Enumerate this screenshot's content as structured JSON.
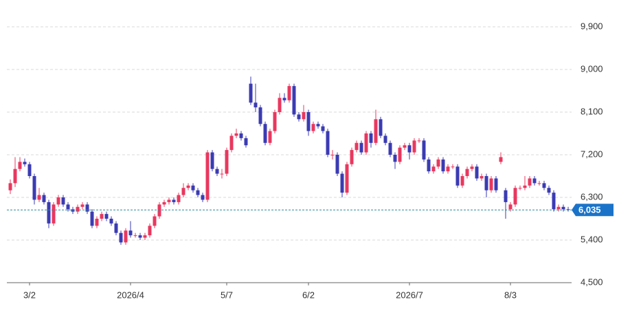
{
  "chart_data": {
    "type": "candlestick",
    "categories": [
      null,
      null,
      null,
      null,
      "3/2",
      null,
      null,
      null,
      null,
      null,
      null,
      null,
      null,
      null,
      null,
      null,
      null,
      null,
      null,
      null,
      null,
      null,
      null,
      null,
      null,
      "2026/4",
      null,
      null,
      null,
      null,
      null,
      null,
      null,
      null,
      null,
      null,
      null,
      null,
      null,
      null,
      null,
      null,
      null,
      null,
      null,
      "5/7",
      null,
      null,
      null,
      null,
      null,
      null,
      null,
      null,
      null,
      null,
      null,
      null,
      null,
      null,
      null,
      null,
      "6/2",
      null,
      null,
      null,
      null,
      null,
      null,
      null,
      null,
      null,
      null,
      null,
      null,
      null,
      null,
      null,
      null,
      null,
      null,
      null,
      null,
      "2026/7",
      null,
      null,
      null,
      null,
      null,
      null,
      null,
      null,
      null,
      null,
      null,
      null,
      null,
      null,
      null,
      null,
      null,
      null,
      null,
      null,
      "8/3",
      null,
      null,
      null,
      null,
      null,
      null,
      null,
      null,
      null,
      null,
      null,
      null
    ],
    "open": [
      6450,
      6600,
      6900,
      7050,
      7000,
      6750,
      6250,
      6350,
      6200,
      5750,
      6150,
      6300,
      6150,
      6050,
      6000,
      6100,
      6150,
      6000,
      5700,
      5850,
      5950,
      5850,
      5750,
      5550,
      5350,
      5600,
      5500,
      5500,
      5450,
      5500,
      5700,
      5900,
      6150,
      6200,
      6250,
      6200,
      6350,
      6500,
      6550,
      6450,
      6350,
      6250,
      7250,
      6900,
      6800,
      6800,
      7300,
      7600,
      7650,
      7550,
      8700,
      8300,
      8200,
      7850,
      7450,
      7700,
      8100,
      8400,
      8350,
      8650,
      8050,
      7950,
      8100,
      7700,
      7850,
      7800,
      7700,
      7200,
      7200,
      6800,
      6400,
      7000,
      7300,
      7450,
      7250,
      7650,
      7450,
      7950,
      7600,
      7450,
      7200,
      7050,
      7350,
      7400,
      7250,
      7500,
      7500,
      7100,
      6850,
      6950,
      7100,
      6850,
      6950,
      6950,
      6550,
      6750,
      6900,
      6950,
      6700,
      6750,
      6450,
      6700,
      7050,
      6450,
      6050,
      6150,
      6500,
      6500,
      6550,
      6700,
      6600,
      6600,
      6500,
      6400,
      6050,
      6100,
      6050
    ],
    "high": [
      6680,
      7150,
      7150,
      7120,
      7050,
      6800,
      6500,
      6400,
      6250,
      6200,
      6350,
      6350,
      6200,
      6100,
      6150,
      6200,
      6200,
      6050,
      5900,
      6000,
      6000,
      5900,
      5800,
      5600,
      5650,
      5800,
      5550,
      5550,
      5550,
      5750,
      5950,
      6200,
      6250,
      6300,
      6300,
      6400,
      6600,
      6600,
      6600,
      6500,
      6400,
      7300,
      7300,
      6950,
      6900,
      7350,
      7650,
      7750,
      7700,
      7600,
      8850,
      8700,
      8250,
      7900,
      7750,
      8150,
      8500,
      8500,
      8700,
      8700,
      8100,
      8250,
      8150,
      7900,
      7900,
      7850,
      7750,
      7300,
      7250,
      6850,
      7050,
      7350,
      7500,
      7500,
      7700,
      7700,
      8150,
      8000,
      7650,
      7500,
      7250,
      7400,
      7450,
      7450,
      7550,
      7550,
      7550,
      7150,
      7000,
      7150,
      7150,
      7000,
      7000,
      7000,
      6800,
      6950,
      7000,
      7000,
      6800,
      6800,
      6750,
      6750,
      7250,
      6500,
      6200,
      6550,
      6550,
      6750,
      6750,
      6750,
      6650,
      6650,
      6550,
      6450,
      6150,
      6150,
      6100
    ],
    "low": [
      6370,
      6520,
      6850,
      6950,
      6700,
      6150,
      6200,
      6150,
      5650,
      5700,
      6100,
      6100,
      6000,
      5950,
      5950,
      6050,
      5950,
      5650,
      5650,
      5800,
      5800,
      5700,
      5500,
      5300,
      5300,
      5450,
      5450,
      5400,
      5400,
      5450,
      5650,
      5850,
      6100,
      6150,
      6150,
      6150,
      6300,
      6450,
      6400,
      6300,
      6200,
      6200,
      6850,
      6750,
      6700,
      6750,
      7250,
      7550,
      7500,
      7350,
      8250,
      8100,
      7800,
      7400,
      7400,
      7650,
      8050,
      8300,
      8300,
      8000,
      7900,
      7900,
      7600,
      7650,
      7750,
      7650,
      7150,
      7100,
      6750,
      6300,
      6350,
      6950,
      7250,
      7200,
      7200,
      7350,
      7400,
      7550,
      7400,
      7150,
      6900,
      7000,
      7300,
      7100,
      7200,
      7450,
      7050,
      6800,
      6800,
      6900,
      6800,
      6800,
      6900,
      6500,
      6500,
      6700,
      6850,
      6650,
      6650,
      6300,
      6400,
      6400,
      7000,
      5850,
      6000,
      6100,
      6450,
      6450,
      6500,
      6550,
      6550,
      6450,
      6350,
      6000,
      6000,
      6000,
      6000
    ],
    "close": [
      6600,
      6900,
      7050,
      7000,
      6750,
      6250,
      6350,
      6200,
      5750,
      6150,
      6300,
      6150,
      6050,
      6000,
      6100,
      6150,
      6000,
      5700,
      5850,
      5950,
      5850,
      5750,
      5550,
      5350,
      5600,
      5500,
      5500,
      5450,
      5500,
      5700,
      5900,
      6150,
      6200,
      6250,
      6200,
      6350,
      6500,
      6550,
      6450,
      6350,
      6250,
      7250,
      6900,
      6800,
      6800,
      7300,
      7600,
      7650,
      7550,
      7400,
      8300,
      8200,
      7850,
      7450,
      7700,
      8100,
      8400,
      8350,
      8650,
      8050,
      7950,
      8100,
      7700,
      7850,
      7800,
      7700,
      7200,
      7200,
      6800,
      6400,
      7000,
      7300,
      7450,
      7250,
      7650,
      7450,
      7950,
      7600,
      7450,
      7200,
      7050,
      7350,
      7400,
      7250,
      7500,
      7500,
      7100,
      6850,
      6950,
      7100,
      6850,
      6950,
      6950,
      6550,
      6750,
      6900,
      6950,
      6700,
      6750,
      6450,
      6700,
      6450,
      7150,
      6200,
      6150,
      6500,
      6500,
      6550,
      6700,
      6600,
      6600,
      6500,
      6400,
      6050,
      6100,
      6050,
      6035
    ],
    "up_color": "#e8385f",
    "down_color": "#3b3bb3",
    "ylim": [
      4500,
      9900
    ],
    "yticks": [
      {
        "value": 4500,
        "label": "4,500"
      },
      {
        "value": 5400,
        "label": "5,400"
      },
      {
        "value": 6300,
        "label": "6,300"
      },
      {
        "value": 7200,
        "label": "7,200"
      },
      {
        "value": 8100,
        "label": "8,100"
      },
      {
        "value": 9000,
        "label": "9,000"
      },
      {
        "value": 9900,
        "label": "9,900"
      }
    ],
    "grid": true,
    "last_price": {
      "value": 6035,
      "label": "6,035",
      "color": "#1a73c8"
    }
  }
}
